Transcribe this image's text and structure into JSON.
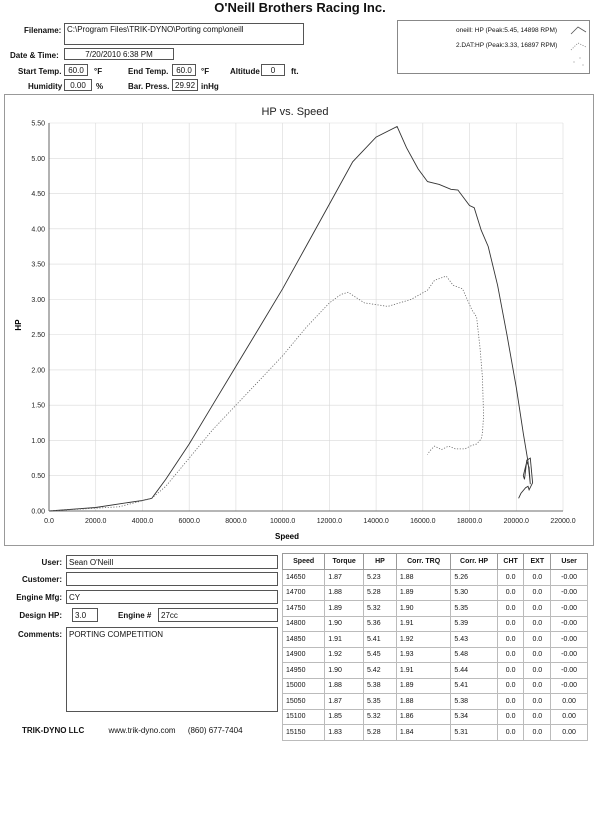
{
  "title": "O'Neill Brothers Racing Inc.",
  "header": {
    "filename_label": "Filename:",
    "filename": "C:\\Program Files\\TRIK-DYNO\\Porting comp\\oneill",
    "datetime_label": "Date & Time:",
    "datetime": "7/20/2010 6:38 PM",
    "start_temp_label": "Start Temp.",
    "start_temp": "60.0",
    "start_temp_unit": "°F",
    "end_temp_label": "End Temp.",
    "end_temp": "60.0",
    "end_temp_unit": "°F",
    "altitude_label": "Altitude",
    "altitude": "0",
    "altitude_unit": "ft.",
    "humidity_label": "Humidity",
    "humidity": "0.00",
    "humidity_unit": "%",
    "pressure_label": "Bar. Press.",
    "pressure": "29.92",
    "pressure_unit": "inHg"
  },
  "legend": [
    {
      "text": "oneill: HP (Peak:5.45, 14898 RPM)",
      "style": "solid"
    },
    {
      "text": "2.DAT:HP (Peak:3.33, 16897 RPM)",
      "style": "dotted"
    }
  ],
  "chart_data": {
    "type": "line",
    "title": "HP vs. Speed",
    "xlabel": "Speed",
    "ylabel": "HP",
    "xlim": [
      0,
      22000
    ],
    "ylim": [
      0,
      5.5
    ],
    "xticks": [
      "0.0",
      "2000.0",
      "4000.0",
      "6000.0",
      "8000.0",
      "10000.0",
      "12000.0",
      "14000.0",
      "16000.0",
      "18000.0",
      "20000.0",
      "22000.0"
    ],
    "yticks": [
      "0.00",
      "0.50",
      "1.00",
      "1.50",
      "2.00",
      "2.50",
      "3.00",
      "3.50",
      "4.00",
      "4.50",
      "5.00",
      "5.50"
    ],
    "grid": true,
    "series": [
      {
        "name": "oneill: HP",
        "style": "solid",
        "x": [
          0,
          2000,
          4000,
          4400,
          5000,
          6000,
          7000,
          8000,
          9000,
          10000,
          11000,
          12000,
          13000,
          14000,
          14900,
          15300,
          15800,
          16200,
          16700,
          17200,
          17500,
          18000,
          18200,
          18500,
          18800,
          19200,
          19600,
          20000,
          20300,
          20500,
          20600,
          20550,
          20450,
          20300,
          20350,
          20450,
          20600,
          20700,
          20550,
          20500,
          20400,
          20200,
          20100
        ],
        "y": [
          0,
          0.05,
          0.15,
          0.18,
          0.45,
          0.95,
          1.5,
          2.05,
          2.6,
          3.15,
          3.75,
          4.35,
          4.95,
          5.3,
          5.45,
          5.15,
          4.85,
          4.67,
          4.63,
          4.56,
          4.55,
          4.33,
          4.3,
          3.98,
          3.75,
          3.2,
          2.5,
          1.75,
          1.1,
          0.7,
          0.38,
          0.62,
          0.7,
          0.5,
          0.45,
          0.72,
          0.75,
          0.4,
          0.3,
          0.35,
          0.33,
          0.25,
          0.18
        ]
      },
      {
        "name": "2.DAT:HP",
        "style": "dotted",
        "x": [
          0,
          3000,
          4400,
          5000,
          6000,
          7000,
          8000,
          9000,
          10000,
          11000,
          12000,
          12500,
          12800,
          13500,
          14500,
          15500,
          16200,
          16500,
          17000,
          17300,
          17700,
          18100,
          18300,
          18450,
          18550,
          18600,
          18550,
          18500,
          18300,
          18100,
          17800,
          17400,
          17100,
          16800,
          16500,
          16300,
          16200
        ],
        "y": [
          0,
          0.06,
          0.18,
          0.35,
          0.75,
          1.15,
          1.5,
          1.85,
          2.2,
          2.6,
          2.95,
          3.07,
          3.1,
          2.95,
          2.9,
          3,
          3.13,
          3.27,
          3.33,
          3.2,
          3.15,
          2.85,
          2.75,
          2.3,
          1.9,
          1.35,
          1.1,
          1.02,
          0.95,
          0.93,
          0.88,
          0.88,
          0.92,
          0.87,
          0.92,
          0.85,
          0.8
        ]
      }
    ]
  },
  "form": {
    "user_label": "User:",
    "user": "Sean O'Neill",
    "customer_label": "Customer:",
    "customer": "",
    "engine_mfg_label": "Engine Mfg:",
    "engine_mfg": "CY",
    "design_hp_label": "Design HP:",
    "design_hp": "3.0",
    "engine_num_label": "Engine #",
    "engine_num": "27cc",
    "comments_label": "Comments:",
    "comments": "PORTING COMPETITION"
  },
  "table": {
    "columns": [
      "Speed",
      "Torque",
      "HP",
      "Corr. TRQ",
      "Corr. HP",
      "CHT",
      "EXT",
      "User"
    ],
    "rows": [
      [
        "14650",
        "1.87",
        "5.23",
        "1.88",
        "5.26",
        "0.0",
        "0.0",
        "-0.00"
      ],
      [
        "14700",
        "1.88",
        "5.28",
        "1.89",
        "5.30",
        "0.0",
        "0.0",
        "-0.00"
      ],
      [
        "14750",
        "1.89",
        "5.32",
        "1.90",
        "5.35",
        "0.0",
        "0.0",
        "-0.00"
      ],
      [
        "14800",
        "1.90",
        "5.36",
        "1.91",
        "5.39",
        "0.0",
        "0.0",
        "-0.00"
      ],
      [
        "14850",
        "1.91",
        "5.41",
        "1.92",
        "5.43",
        "0.0",
        "0.0",
        "-0.00"
      ],
      [
        "14900",
        "1.92",
        "5.45",
        "1.93",
        "5.48",
        "0.0",
        "0.0",
        "-0.00"
      ],
      [
        "14950",
        "1.90",
        "5.42",
        "1.91",
        "5.44",
        "0.0",
        "0.0",
        "-0.00"
      ],
      [
        "15000",
        "1.88",
        "5.38",
        "1.89",
        "5.41",
        "0.0",
        "0.0",
        "-0.00"
      ],
      [
        "15050",
        "1.87",
        "5.35",
        "1.88",
        "5.38",
        "0.0",
        "0.0",
        "0.00"
      ],
      [
        "15100",
        "1.85",
        "5.32",
        "1.86",
        "5.34",
        "0.0",
        "0.0",
        "0.00"
      ],
      [
        "15150",
        "1.83",
        "5.28",
        "1.84",
        "5.31",
        "0.0",
        "0.0",
        "0.00"
      ]
    ]
  },
  "footer": {
    "company": "TRIK-DYNO LLC",
    "website": "www.trik-dyno.com",
    "phone": "(860) 677-7404"
  }
}
